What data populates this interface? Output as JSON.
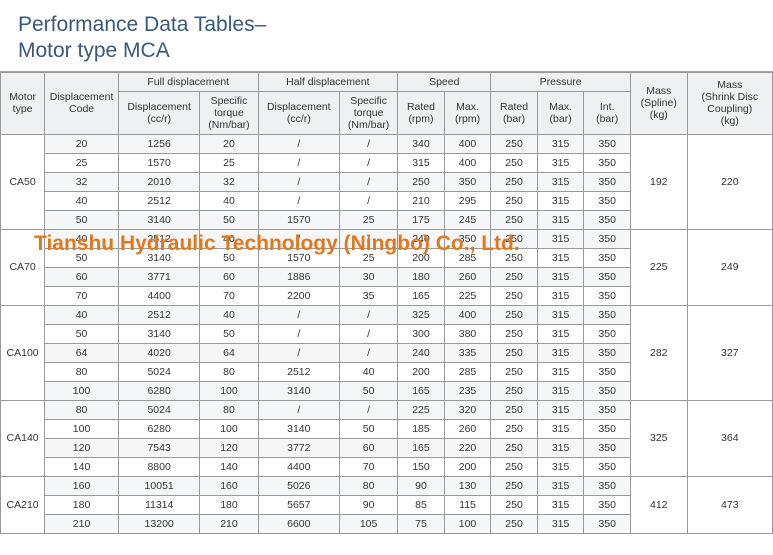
{
  "title": {
    "line1": "Performance Data Tables–",
    "line2": "Motor type MCA"
  },
  "headers": {
    "motor_type": "Motor\ntype",
    "disp_code": "Displacement\nCode",
    "full_disp": "Full displacement",
    "half_disp": "Half displacement",
    "speed": "Speed",
    "pressure": "Pressure",
    "mass_spline": "Mass\n(Spline)\n(kg)",
    "mass_shrink": "Mass\n(Shrink Disc\nCoupling)\n(kg)",
    "displacement": "Displacement\n(cc/r)",
    "spec_torque": "Specific\ntorque\n(Nm/bar)",
    "rated_rpm": "Rated\n(rpm)",
    "max_rpm": "Max.\n(rpm)",
    "rated_bar": "Rated\n(bar)",
    "max_bar": "Max.\n(bar)",
    "int_bar": "Int.\n(bar)"
  },
  "column_widths": [
    "5.7%",
    "9.5%",
    "10.5%",
    "7.5%",
    "10.5%",
    "7.5%",
    "6%",
    "6%",
    "6%",
    "6%",
    "6%",
    "7.3%",
    "11%"
  ],
  "groups": [
    {
      "motor_type": "CA50",
      "mass_spline": "192",
      "mass_shrink": "220",
      "rows": [
        {
          "code": "20",
          "fd": "1256",
          "ft": "20",
          "hd": "/",
          "ht": "/",
          "rr": "340",
          "mr": "400",
          "rb": "250",
          "mb": "315",
          "ib": "350"
        },
        {
          "code": "25",
          "fd": "1570",
          "ft": "25",
          "hd": "/",
          "ht": "/",
          "rr": "315",
          "mr": "400",
          "rb": "250",
          "mb": "315",
          "ib": "350"
        },
        {
          "code": "32",
          "fd": "2010",
          "ft": "32",
          "hd": "/",
          "ht": "/",
          "rr": "250",
          "mr": "350",
          "rb": "250",
          "mb": "315",
          "ib": "350"
        },
        {
          "code": "40",
          "fd": "2512",
          "ft": "40",
          "hd": "/",
          "ht": "/",
          "rr": "210",
          "mr": "295",
          "rb": "250",
          "mb": "315",
          "ib": "350"
        },
        {
          "code": "50",
          "fd": "3140",
          "ft": "50",
          "hd": "1570",
          "ht": "25",
          "rr": "175",
          "mr": "245",
          "rb": "250",
          "mb": "315",
          "ib": "350"
        }
      ]
    },
    {
      "motor_type": "CA70",
      "mass_spline": "225",
      "mass_shrink": "249",
      "rows": [
        {
          "code": "40",
          "fd": "2512",
          "ft": "40",
          "hd": "/",
          "ht": "/",
          "rr": "240",
          "mr": "350",
          "rb": "250",
          "mb": "315",
          "ib": "350"
        },
        {
          "code": "50",
          "fd": "3140",
          "ft": "50",
          "hd": "1570",
          "ht": "25",
          "rr": "200",
          "mr": "285",
          "rb": "250",
          "mb": "315",
          "ib": "350"
        },
        {
          "code": "60",
          "fd": "3771",
          "ft": "60",
          "hd": "1886",
          "ht": "30",
          "rr": "180",
          "mr": "260",
          "rb": "250",
          "mb": "315",
          "ib": "350"
        },
        {
          "code": "70",
          "fd": "4400",
          "ft": "70",
          "hd": "2200",
          "ht": "35",
          "rr": "165",
          "mr": "225",
          "rb": "250",
          "mb": "315",
          "ib": "350"
        }
      ]
    },
    {
      "motor_type": "CA100",
      "mass_spline": "282",
      "mass_shrink": "327",
      "rows": [
        {
          "code": "40",
          "fd": "2512",
          "ft": "40",
          "hd": "/",
          "ht": "/",
          "rr": "325",
          "mr": "400",
          "rb": "250",
          "mb": "315",
          "ib": "350"
        },
        {
          "code": "50",
          "fd": "3140",
          "ft": "50",
          "hd": "/",
          "ht": "/",
          "rr": "300",
          "mr": "380",
          "rb": "250",
          "mb": "315",
          "ib": "350"
        },
        {
          "code": "64",
          "fd": "4020",
          "ft": "64",
          "hd": "/",
          "ht": "/",
          "rr": "240",
          "mr": "335",
          "rb": "250",
          "mb": "315",
          "ib": "350"
        },
        {
          "code": "80",
          "fd": "5024",
          "ft": "80",
          "hd": "2512",
          "ht": "40",
          "rr": "200",
          "mr": "285",
          "rb": "250",
          "mb": "315",
          "ib": "350"
        },
        {
          "code": "100",
          "fd": "6280",
          "ft": "100",
          "hd": "3140",
          "ht": "50",
          "rr": "165",
          "mr": "235",
          "rb": "250",
          "mb": "315",
          "ib": "350"
        }
      ]
    },
    {
      "motor_type": "CA140",
      "mass_spline": "325",
      "mass_shrink": "364",
      "rows": [
        {
          "code": "80",
          "fd": "5024",
          "ft": "80",
          "hd": "/",
          "ht": "/",
          "rr": "225",
          "mr": "320",
          "rb": "250",
          "mb": "315",
          "ib": "350"
        },
        {
          "code": "100",
          "fd": "6280",
          "ft": "100",
          "hd": "3140",
          "ht": "50",
          "rr": "185",
          "mr": "260",
          "rb": "250",
          "mb": "315",
          "ib": "350"
        },
        {
          "code": "120",
          "fd": "7543",
          "ft": "120",
          "hd": "3772",
          "ht": "60",
          "rr": "165",
          "mr": "220",
          "rb": "250",
          "mb": "315",
          "ib": "350"
        },
        {
          "code": "140",
          "fd": "8800",
          "ft": "140",
          "hd": "4400",
          "ht": "70",
          "rr": "150",
          "mr": "200",
          "rb": "250",
          "mb": "315",
          "ib": "350"
        }
      ]
    },
    {
      "motor_type": "CA210",
      "mass_spline": "412",
      "mass_shrink": "473",
      "rows": [
        {
          "code": "160",
          "fd": "10051",
          "ft": "160",
          "hd": "5026",
          "ht": "80",
          "rr": "90",
          "mr": "130",
          "rb": "250",
          "mb": "315",
          "ib": "350"
        },
        {
          "code": "180",
          "fd": "11314",
          "ft": "180",
          "hd": "5657",
          "ht": "90",
          "rr": "85",
          "mr": "115",
          "rb": "250",
          "mb": "315",
          "ib": "350"
        },
        {
          "code": "210",
          "fd": "13200",
          "ft": "210",
          "hd": "6600",
          "ht": "105",
          "rr": "75",
          "mr": "100",
          "rb": "250",
          "mb": "315",
          "ib": "350"
        }
      ]
    }
  ],
  "watermark": "Tianshu Hydraulic Technology (Ningbo) Co., Ltd.",
  "colors": {
    "title": "#3a5a7a",
    "header_bg": "#eef0f1",
    "row_alt_bg": "#f5f6f7",
    "border": "#999999",
    "watermark": "#e07820"
  }
}
